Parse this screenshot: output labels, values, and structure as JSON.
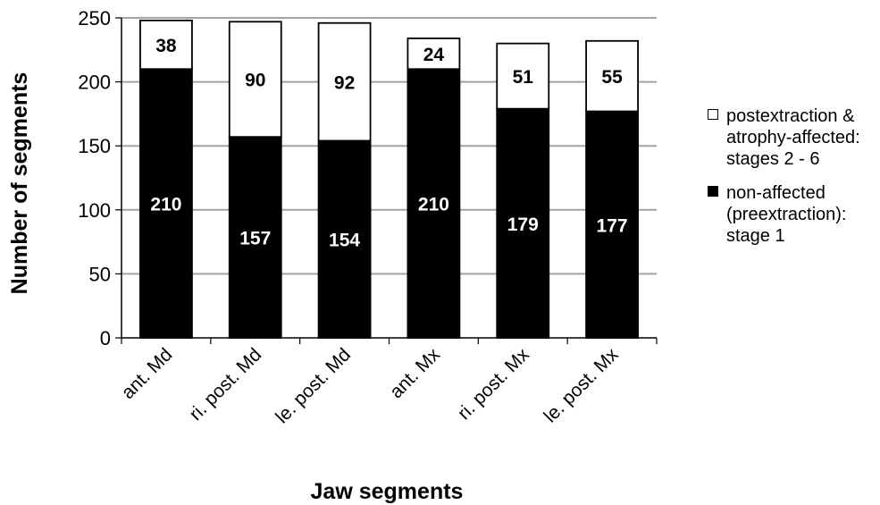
{
  "chart_data": {
    "type": "bar",
    "stacked": true,
    "title": "",
    "xlabel": "Jaw segments",
    "ylabel": "Number  of segments",
    "ylim": [
      0,
      250
    ],
    "yticks": [
      0,
      50,
      100,
      150,
      200,
      250
    ],
    "grid": true,
    "legend_position": "right",
    "categories": [
      "ant. Md",
      "ri. post. Md",
      "le. post. Md",
      "ant. Mx",
      "ri. post. Mx",
      "le. post. Mx"
    ],
    "series": [
      {
        "name": "non-affected\n(preextraction):\nstage 1",
        "color": "#000000",
        "label_color": "#ffffff",
        "values": [
          210,
          157,
          154,
          210,
          179,
          177
        ]
      },
      {
        "name": "postextraction &\natrophy-affected:\nstages 2 - 6",
        "color": "#ffffff",
        "label_color": "#000000",
        "values": [
          38,
          90,
          92,
          24,
          51,
          55
        ]
      }
    ],
    "legend_order": [
      1,
      0
    ]
  }
}
